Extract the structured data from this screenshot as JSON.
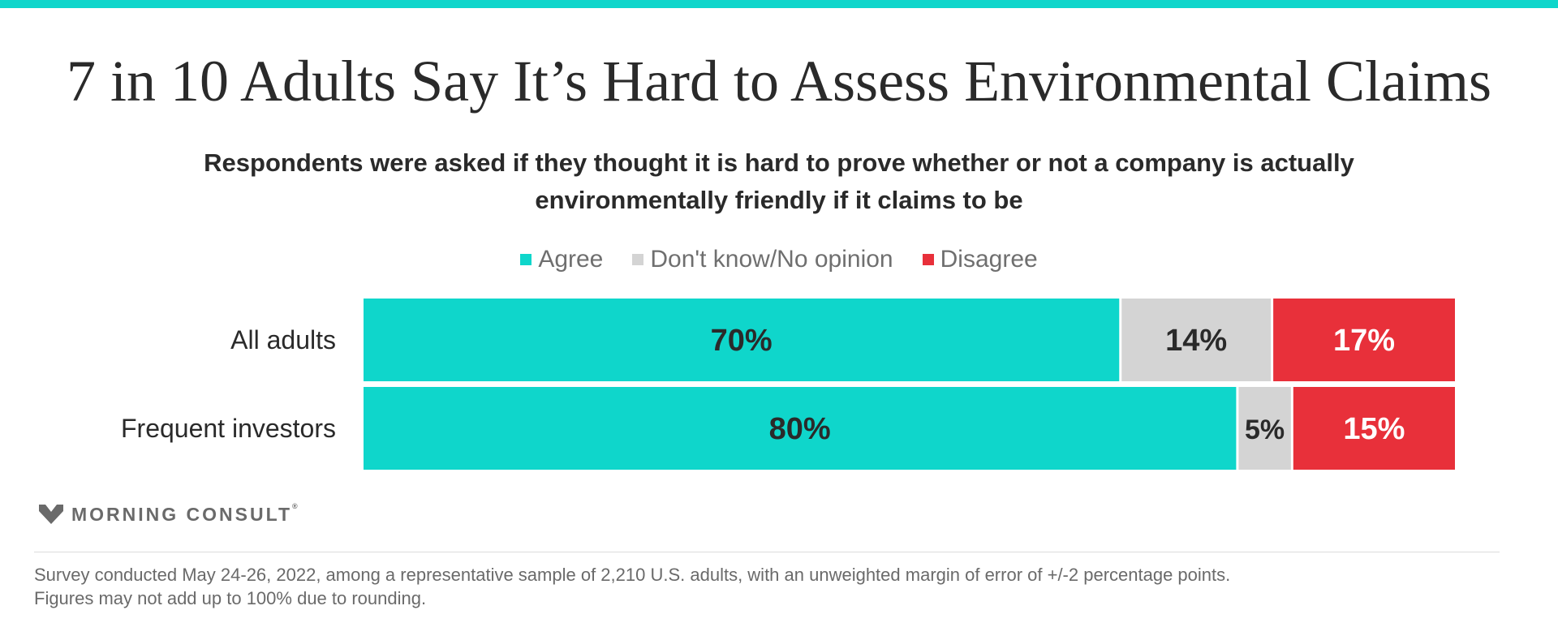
{
  "title": "7 in 10 Adults Say It’s Hard to Assess Environmental Claims",
  "subtitle": "Respondents were asked if they thought it is hard to prove whether or not a company is actually environmentally friendly if it claims to be",
  "logo": {
    "text": "MORNING CONSULT",
    "mark": "®"
  },
  "footnote": {
    "line1": "Survey conducted May 24-26, 2022, among a representative sample of 2,210 U.S. adults, with an unweighted margin of error of +/-2 percentage points.",
    "line2": "Figures may not add up to 100% due to rounding."
  },
  "colors": {
    "agree": "#0fd6cb",
    "dont_know": "#d4d4d4",
    "disagree": "#e8303a",
    "accent": "#0fd6cb"
  },
  "chart_data": {
    "type": "bar",
    "orientation": "horizontal",
    "stacked": true,
    "categories": [
      "All adults",
      "Frequent investors"
    ],
    "series": [
      {
        "name": "Agree",
        "values": [
          70,
          80
        ],
        "color": "#0fd6cb",
        "label_color": "#2a2a2a"
      },
      {
        "name": "Don't know/No opinion",
        "values": [
          14,
          5
        ],
        "color": "#d4d4d4",
        "label_color": "#2a2a2a"
      },
      {
        "name": "Disagree",
        "values": [
          17,
          15
        ],
        "color": "#e8303a",
        "label_color": "#ffffff"
      }
    ],
    "value_suffix": "%",
    "legend_position": "top-center",
    "grid": false
  }
}
